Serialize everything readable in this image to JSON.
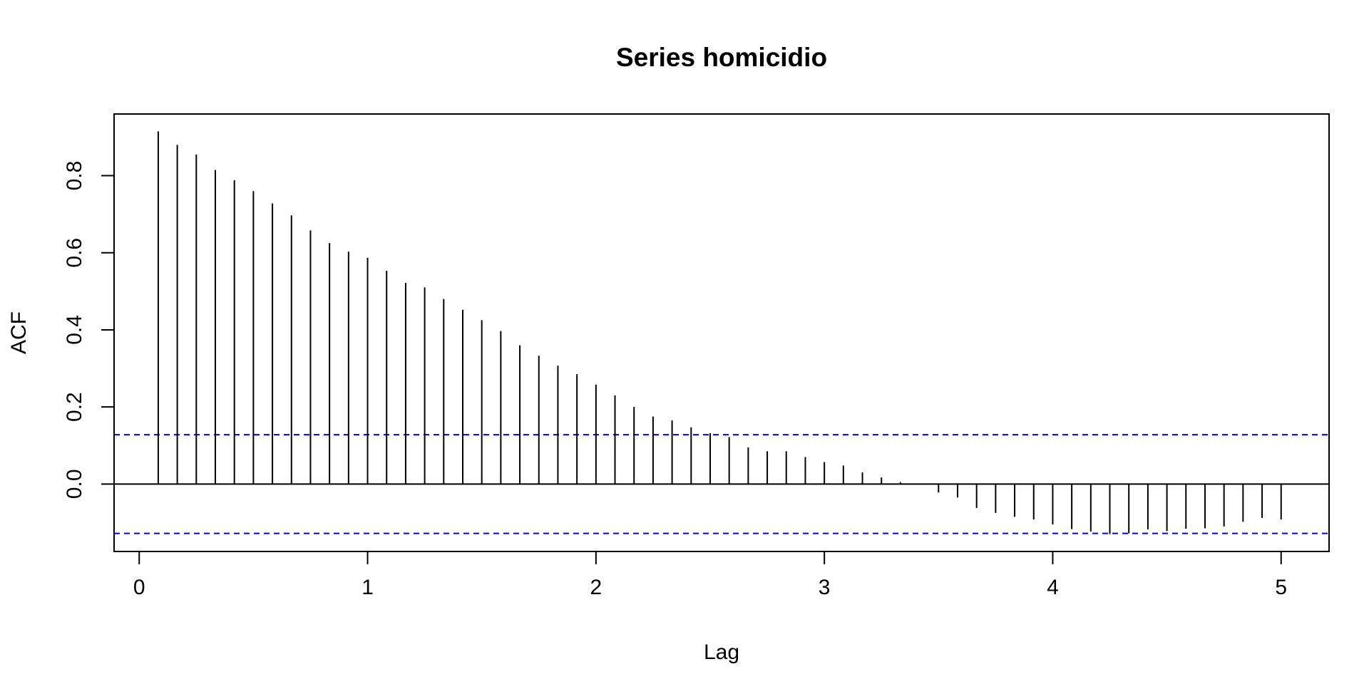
{
  "chart_data": {
    "type": "bar",
    "subtype": "acf",
    "title": "Series homicidio",
    "xlabel": "Lag",
    "ylabel": "ACF",
    "xlim": [
      -0.11,
      5.21
    ],
    "ylim": [
      -0.175,
      0.96
    ],
    "x_ticks": [
      0,
      1,
      2,
      3,
      4,
      5
    ],
    "x_tick_labels": [
      "0",
      "1",
      "2",
      "3",
      "4",
      "5"
    ],
    "y_ticks": [
      0.0,
      0.2,
      0.4,
      0.6,
      0.8
    ],
    "y_tick_labels": [
      "0.0",
      "0.2",
      "0.4",
      "0.6",
      "0.8"
    ],
    "grid": false,
    "legend": "none",
    "confidence_bound": 0.128,
    "colors": {
      "bars": "#000000",
      "bounds": "#0000ff",
      "zero_line": "#000000"
    },
    "lags": [
      0.0833,
      0.1667,
      0.25,
      0.3333,
      0.4167,
      0.5,
      0.5833,
      0.6667,
      0.75,
      0.8333,
      0.9167,
      1.0,
      1.0833,
      1.1667,
      1.25,
      1.3333,
      1.4167,
      1.5,
      1.5833,
      1.6667,
      1.75,
      1.8333,
      1.9167,
      2.0,
      2.0833,
      2.1667,
      2.25,
      2.3333,
      2.4167,
      2.5,
      2.5833,
      2.6667,
      2.75,
      2.8333,
      2.9167,
      3.0,
      3.0833,
      3.1667,
      3.25,
      3.3333,
      3.4167,
      3.5,
      3.5833,
      3.6667,
      3.75,
      3.8333,
      3.9167,
      4.0,
      4.0833,
      4.1667,
      4.25,
      4.3333,
      4.4167,
      4.5,
      4.5833,
      4.6667,
      4.75,
      4.8333,
      4.9167,
      5.0
    ],
    "values": [
      0.915,
      0.88,
      0.855,
      0.815,
      0.788,
      0.76,
      0.728,
      0.697,
      0.658,
      0.625,
      0.603,
      0.587,
      0.553,
      0.522,
      0.51,
      0.48,
      0.452,
      0.425,
      0.397,
      0.36,
      0.333,
      0.307,
      0.285,
      0.258,
      0.23,
      0.2,
      0.175,
      0.165,
      0.147,
      0.132,
      0.122,
      0.095,
      0.085,
      0.085,
      0.07,
      0.057,
      0.048,
      0.03,
      0.017,
      0.005,
      0.0,
      -0.022,
      -0.035,
      -0.062,
      -0.075,
      -0.085,
      -0.092,
      -0.105,
      -0.117,
      -0.123,
      -0.13,
      -0.128,
      -0.118,
      -0.122,
      -0.116,
      -0.115,
      -0.11,
      -0.098,
      -0.088,
      -0.092
    ]
  }
}
